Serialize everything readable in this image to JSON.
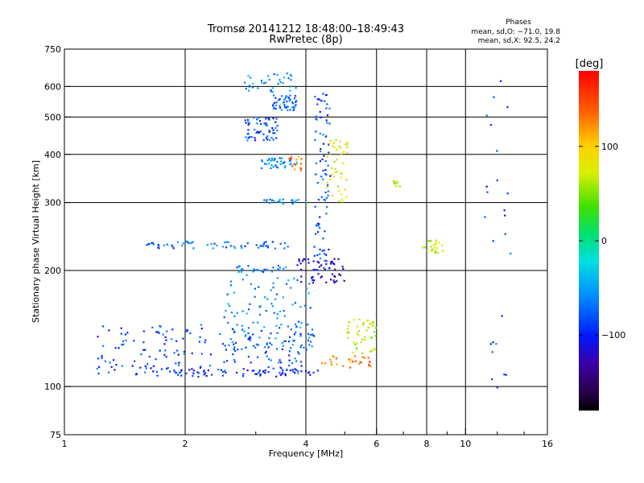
{
  "title": "Tromsø 20141212 18:48:00–18:49:43",
  "subtitle": "RwPretec (8p)",
  "stats": {
    "heading": "Phases",
    "line_o": "mean, sd,O: −71.0, 19.8",
    "line_x": "mean, sd,X: 92.5, 24.2"
  },
  "colorbar": {
    "unit_label": "[deg]",
    "range": [
      -180,
      180
    ],
    "ticks": [
      {
        "value": 100,
        "label": "100"
      },
      {
        "value": 0,
        "label": "0"
      },
      {
        "value": -100,
        "label": "−100"
      }
    ]
  },
  "chart_data": {
    "type": "scatter",
    "title": "Tromsø 20141212 18:48:00–18:49:43",
    "subtitle": "RwPretec (8p)",
    "xlabel": "Frequency [MHz]",
    "ylabel": "Stationary phase Virtual Height [km]",
    "xscale": "log",
    "yscale": "log",
    "xlim": [
      1,
      16
    ],
    "ylim": [
      75,
      750
    ],
    "grid": true,
    "x_ticks": [
      {
        "value": 1,
        "label": "1"
      },
      {
        "value": 2,
        "label": "2"
      },
      {
        "value": 4,
        "label": "4"
      },
      {
        "value": 6,
        "label": "6"
      },
      {
        "value": 8,
        "label": "8"
      },
      {
        "value": 10,
        "label": "10"
      },
      {
        "value": 16,
        "label": "16"
      }
    ],
    "x_minor_ticks": [
      3,
      5,
      7,
      9,
      12,
      14
    ],
    "y_ticks": [
      {
        "value": 75,
        "label": "75"
      },
      {
        "value": 100,
        "label": "100"
      },
      {
        "value": 200,
        "label": "200"
      },
      {
        "value": 300,
        "label": "300"
      },
      {
        "value": 400,
        "label": "400"
      },
      {
        "value": 500,
        "label": "500"
      },
      {
        "value": 600,
        "label": "600"
      },
      {
        "value": 750,
        "label": "750"
      }
    ],
    "x_gridlines": [
      2,
      4,
      6,
      8,
      10
    ],
    "y_gridlines": [
      100,
      200,
      300,
      400,
      500,
      600
    ],
    "color_variable": "phase [deg]",
    "color_range": [
      -180,
      180
    ],
    "traces": [
      {
        "x_range": [
          1.5,
          4.3
        ],
        "y_range": [
          106,
          112
        ],
        "phase": -100,
        "points": 70
      },
      {
        "x_range": [
          1.2,
          4.2
        ],
        "y_range": [
          108,
          145
        ],
        "phase": -85,
        "points": 180
      },
      {
        "x_range": [
          2.5,
          4.2
        ],
        "y_range": [
          115,
          195
        ],
        "phase": -60,
        "points": 110
      },
      {
        "x_range": [
          1.6,
          3.7
        ],
        "y_range": [
          228,
          238
        ],
        "phase": -70,
        "points": 60
      },
      {
        "x_range": [
          2.6,
          3.6
        ],
        "y_range": [
          198,
          206
        ],
        "phase": -65,
        "points": 25
      },
      {
        "x_range": [
          3.1,
          4.0
        ],
        "y_range": [
          298,
          306
        ],
        "phase": -60,
        "points": 22
      },
      {
        "x_range": [
          3.1,
          3.8
        ],
        "y_range": [
          368,
          392
        ],
        "phase": -60,
        "points": 40
      },
      {
        "x_range": [
          2.8,
          3.4
        ],
        "y_range": [
          435,
          500
        ],
        "phase": -80,
        "points": 60
      },
      {
        "x_range": [
          3.3,
          3.8
        ],
        "y_range": [
          520,
          570
        ],
        "phase": -75,
        "points": 50
      },
      {
        "x_range": [
          2.8,
          3.8
        ],
        "y_range": [
          580,
          650
        ],
        "phase": -55,
        "points": 35
      },
      {
        "x_range": [
          4.2,
          4.6
        ],
        "y_range": [
          200,
          580
        ],
        "phase": -85,
        "points": 90
      },
      {
        "x_range": [
          3.8,
          5.0
        ],
        "y_range": [
          185,
          215
        ],
        "phase": -120,
        "points": 50
      },
      {
        "x_range": [
          4.3,
          5.8
        ],
        "y_range": [
          112,
          120
        ],
        "phase": 130,
        "points": 30
      },
      {
        "x_range": [
          5.0,
          6.0
        ],
        "y_range": [
          120,
          150
        ],
        "phase": 75,
        "points": 45
      },
      {
        "x_range": [
          4.5,
          5.1
        ],
        "y_range": [
          300,
          440
        ],
        "phase": 85,
        "points": 45
      },
      {
        "x_range": [
          3.6,
          3.9
        ],
        "y_range": [
          360,
          395
        ],
        "phase": 130,
        "points": 15
      },
      {
        "x_range": [
          7.8,
          8.8
        ],
        "y_range": [
          222,
          240
        ],
        "phase": 75,
        "points": 25
      },
      {
        "x_range": [
          6.6,
          6.9
        ],
        "y_range": [
          330,
          345
        ],
        "phase": 60,
        "points": 10
      },
      {
        "x_range": [
          11.0,
          13.0
        ],
        "y_range": [
          90,
          630
        ],
        "phase": -90,
        "points": 25
      }
    ]
  }
}
